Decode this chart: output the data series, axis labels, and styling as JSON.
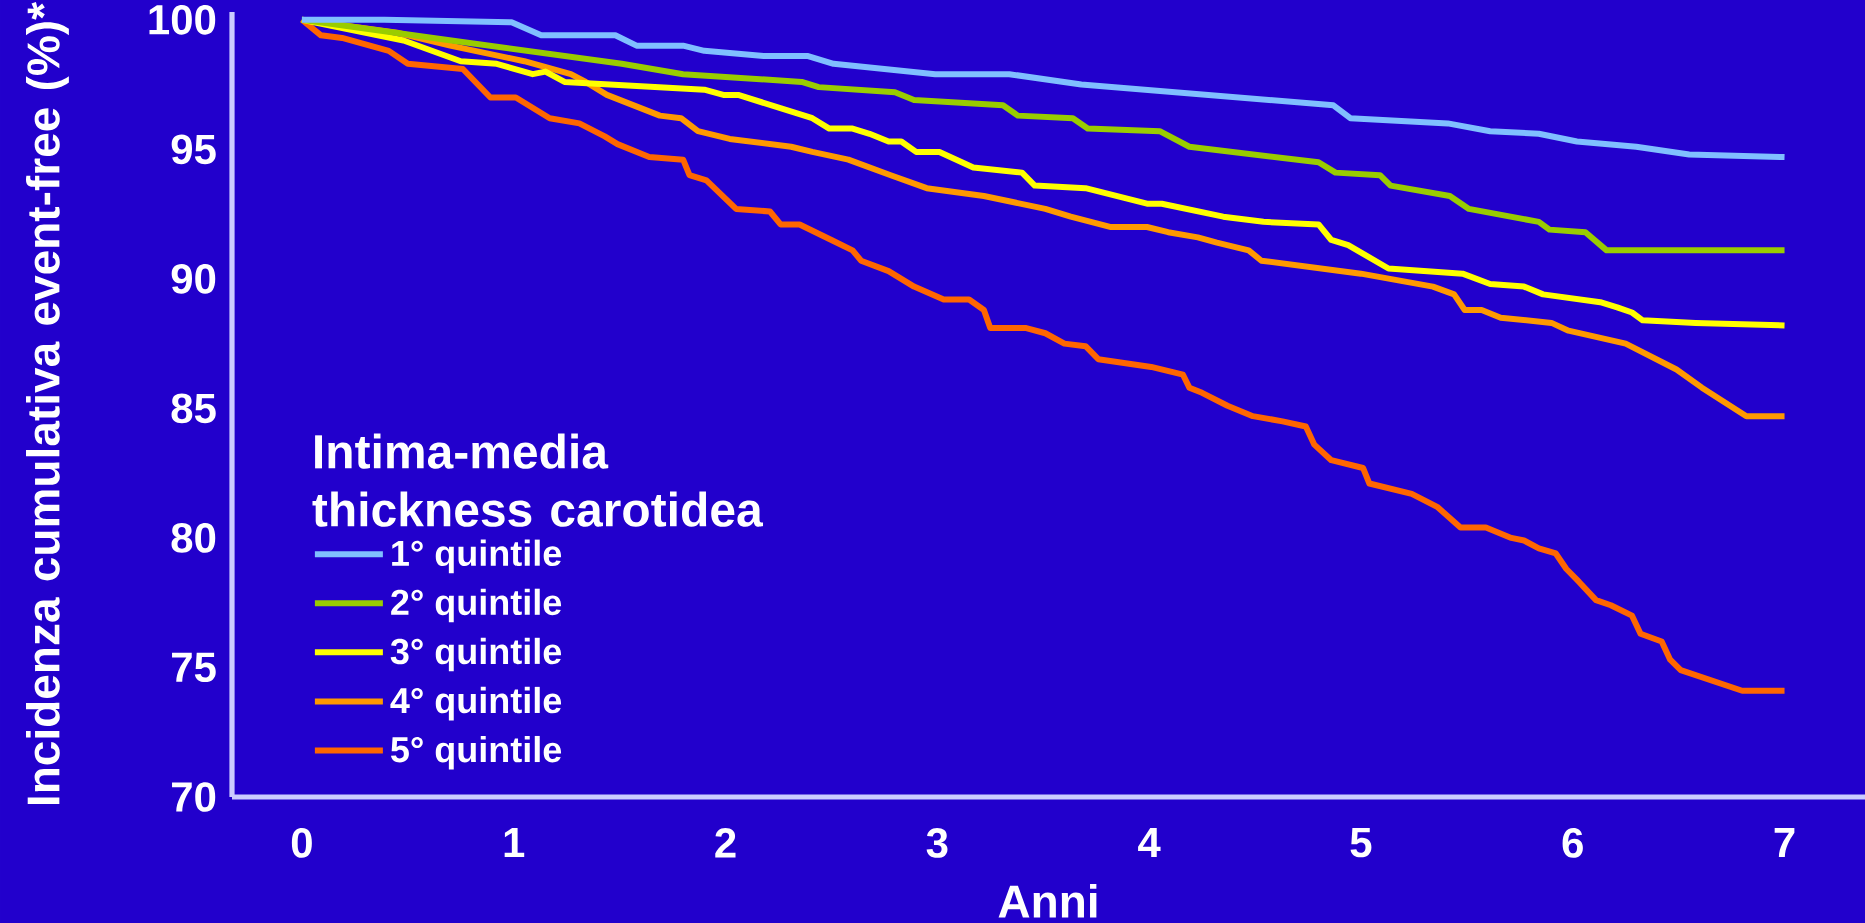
{
  "chart_data": {
    "type": "line",
    "xlabel": "Anni",
    "ylabel": "Incidenza cumulativa event-free (%)*",
    "legend_title": "Intima-media thickness carotidea",
    "legend": "bottom left",
    "xlim": [
      -0.33,
      7.38
    ],
    "ylim": [
      70,
      100.3
    ],
    "xticks": [
      0,
      1,
      2,
      3,
      4,
      5,
      6,
      7
    ],
    "yticks": [
      70,
      75,
      80,
      85,
      90,
      95,
      100
    ],
    "series": [
      {
        "name": "1° quintile",
        "color": "#80bfff",
        "x": [
          0,
          0.39,
          0.99,
          1.13,
          1.48,
          1.58,
          1.8,
          1.9,
          2.18,
          2.39,
          2.51,
          2.99,
          3.34,
          3.68,
          4.87,
          4.95,
          5.41,
          5.61,
          5.84,
          6.02,
          6.3,
          6.55,
          7.0
        ],
        "values": [
          100,
          100,
          99.9,
          99.4,
          99.4,
          99.0,
          99.0,
          98.8,
          98.6,
          98.6,
          98.3,
          97.9,
          97.9,
          97.5,
          96.7,
          96.2,
          96.0,
          95.7,
          95.6,
          95.3,
          95.1,
          94.8,
          94.7
        ]
      },
      {
        "name": "2° quintile",
        "color": "#99cc00",
        "x": [
          0,
          0.62,
          1.51,
          1.8,
          2.36,
          2.44,
          2.8,
          2.89,
          3.31,
          3.38,
          3.64,
          3.71,
          4.05,
          4.19,
          4.8,
          4.88,
          5.09,
          5.14,
          5.42,
          5.51,
          5.84,
          5.89,
          6.06,
          6.16,
          7.0
        ],
        "values": [
          100,
          99.3,
          98.3,
          97.9,
          97.6,
          97.4,
          97.2,
          96.9,
          96.7,
          96.3,
          96.2,
          95.8,
          95.7,
          95.1,
          94.5,
          94.1,
          94.0,
          93.6,
          93.2,
          92.7,
          92.2,
          91.9,
          91.8,
          91.1,
          91.1
        ]
      },
      {
        "name": "3° quintile",
        "color": "#ffff00",
        "x": [
          0,
          0.48,
          0.75,
          0.92,
          1.09,
          1.15,
          1.24,
          1.9,
          1.99,
          2.06,
          2.41,
          2.49,
          2.6,
          2.68,
          2.77,
          2.83,
          2.9,
          3.01,
          3.17,
          3.4,
          3.46,
          3.7,
          3.99,
          4.06,
          4.35,
          4.54,
          4.8,
          4.86,
          4.94,
          5.13,
          5.48,
          5.61,
          5.77,
          5.86,
          6.13,
          6.21,
          6.28,
          6.33,
          6.58,
          7.0
        ],
        "values": [
          100,
          99.2,
          98.4,
          98.3,
          97.9,
          98.0,
          97.6,
          97.3,
          97.1,
          97.1,
          96.2,
          95.8,
          95.8,
          95.6,
          95.3,
          95.3,
          94.9,
          94.9,
          94.3,
          94.1,
          93.6,
          93.5,
          92.9,
          92.9,
          92.4,
          92.2,
          92.1,
          91.5,
          91.3,
          90.4,
          90.2,
          89.8,
          89.7,
          89.4,
          89.1,
          88.9,
          88.7,
          88.4,
          88.3,
          88.2
        ]
      },
      {
        "name": "4° quintile",
        "color": "#ff9900",
        "x": [
          0,
          0.45,
          0.7,
          1.05,
          1.27,
          1.34,
          1.44,
          1.69,
          1.79,
          1.87,
          2.02,
          2.31,
          2.41,
          2.58,
          2.78,
          2.95,
          3.22,
          3.51,
          3.63,
          3.82,
          3.99,
          4.09,
          4.23,
          4.32,
          4.47,
          4.53,
          5.0,
          5.34,
          5.44,
          5.49,
          5.57,
          5.66,
          5.9,
          5.98,
          6.25,
          6.49,
          6.61,
          6.82,
          7.0
        ],
        "values": [
          100,
          99.5,
          99.0,
          98.4,
          97.9,
          97.6,
          97.1,
          96.3,
          96.2,
          95.7,
          95.4,
          95.1,
          94.9,
          94.6,
          94.0,
          93.5,
          93.2,
          92.7,
          92.4,
          92.0,
          92.0,
          91.8,
          91.6,
          91.4,
          91.1,
          90.7,
          90.2,
          89.7,
          89.4,
          88.8,
          88.8,
          88.5,
          88.3,
          88.0,
          87.5,
          86.5,
          85.8,
          84.7,
          84.7
        ]
      },
      {
        "name": "5° quintile",
        "color": "#ff6600",
        "x": [
          0,
          0.09,
          0.19,
          0.41,
          0.5,
          0.76,
          0.89,
          1.01,
          1.17,
          1.31,
          1.43,
          1.49,
          1.64,
          1.8,
          1.83,
          1.91,
          2.05,
          2.21,
          2.26,
          2.35,
          2.5,
          2.6,
          2.64,
          2.77,
          2.89,
          3.03,
          3.15,
          3.22,
          3.25,
          3.42,
          3.51,
          3.6,
          3.7,
          3.76,
          4.01,
          4.16,
          4.19,
          4.25,
          4.37,
          4.49,
          4.63,
          4.74,
          4.78,
          4.86,
          5.01,
          5.04,
          5.24,
          5.36,
          5.47,
          5.59,
          5.71,
          5.77,
          5.84,
          5.92,
          5.97,
          6.03,
          6.11,
          6.18,
          6.28,
          6.32,
          6.42,
          6.46,
          6.51,
          6.8,
          7.0
        ],
        "values": [
          100,
          99.4,
          99.3,
          98.8,
          98.3,
          98.1,
          97.0,
          97.0,
          96.2,
          96.0,
          95.5,
          95.2,
          94.7,
          94.6,
          94.0,
          93.8,
          92.7,
          92.6,
          92.1,
          92.1,
          91.5,
          91.1,
          90.7,
          90.3,
          89.7,
          89.2,
          89.2,
          88.8,
          88.1,
          88.1,
          87.9,
          87.5,
          87.4,
          86.9,
          86.6,
          86.3,
          85.8,
          85.6,
          85.1,
          84.7,
          84.5,
          84.3,
          83.6,
          83.0,
          82.7,
          82.1,
          81.7,
          81.2,
          80.4,
          80.4,
          80.0,
          79.9,
          79.6,
          79.4,
          78.8,
          78.3,
          77.6,
          77.4,
          77.0,
          76.3,
          76.0,
          75.3,
          74.9,
          74.1,
          74.1
        ]
      }
    ]
  }
}
